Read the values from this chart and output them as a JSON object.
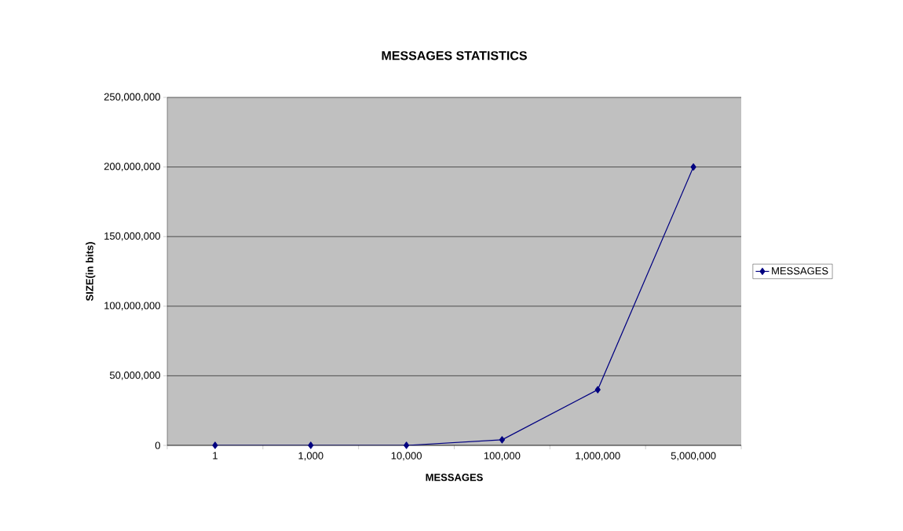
{
  "chart_data": {
    "type": "line",
    "title": "MESSAGES STATISTICS",
    "xlabel": "MESSAGES",
    "ylabel": "SIZE(in bits)",
    "categories": [
      "1",
      "1,000",
      "10,000",
      "100,000",
      "1,000,000",
      "5,000,000"
    ],
    "series": [
      {
        "name": "MESSAGES",
        "color": "#000080",
        "values": [
          0,
          0,
          0,
          4000000,
          40000000,
          200000000
        ]
      }
    ],
    "ylim": [
      0,
      250000000
    ],
    "yticks": [
      {
        "value": 0,
        "label": "0"
      },
      {
        "value": 50000000,
        "label": "50,000,000"
      },
      {
        "value": 100000000,
        "label": "100,000,000"
      },
      {
        "value": 150000000,
        "label": "150,000,000"
      },
      {
        "value": 200000000,
        "label": "200,000,000"
      },
      {
        "value": 250000000,
        "label": "250,000,000"
      }
    ],
    "grid": "y",
    "legend": "right",
    "marker": "diamond",
    "line_style": "solid"
  }
}
